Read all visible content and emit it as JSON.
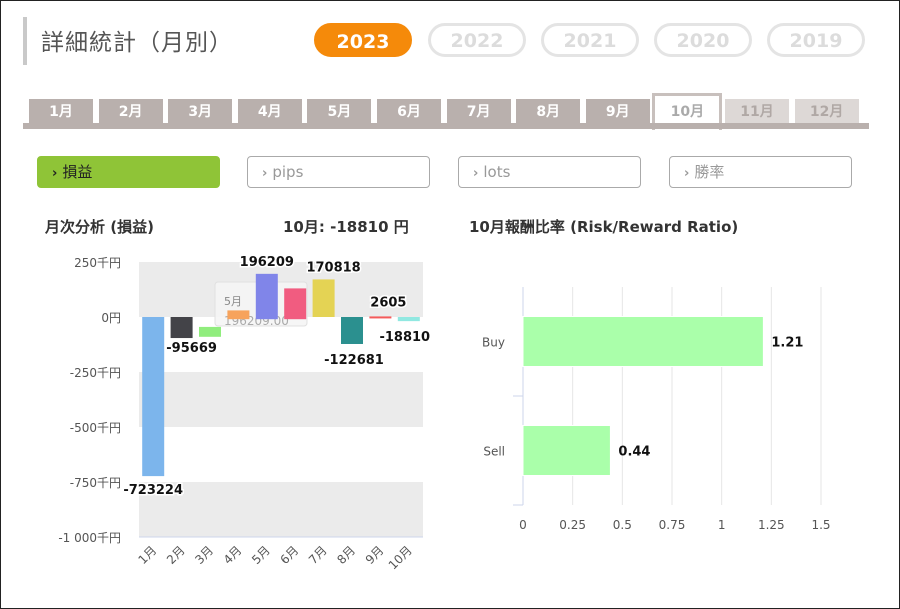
{
  "header": {
    "title": "詳細統計（月別）"
  },
  "years": [
    {
      "label": "2023",
      "active": true
    },
    {
      "label": "2022",
      "active": false
    },
    {
      "label": "2021",
      "active": false
    },
    {
      "label": "2020",
      "active": false
    },
    {
      "label": "2019",
      "active": false
    }
  ],
  "months": [
    {
      "label": "1月",
      "state": "normal"
    },
    {
      "label": "2月",
      "state": "normal"
    },
    {
      "label": "3月",
      "state": "normal"
    },
    {
      "label": "4月",
      "state": "normal"
    },
    {
      "label": "5月",
      "state": "normal"
    },
    {
      "label": "6月",
      "state": "normal"
    },
    {
      "label": "7月",
      "state": "normal"
    },
    {
      "label": "8月",
      "state": "normal"
    },
    {
      "label": "9月",
      "state": "normal"
    },
    {
      "label": "10月",
      "state": "active"
    },
    {
      "label": "11月",
      "state": "future"
    },
    {
      "label": "12月",
      "state": "future"
    }
  ],
  "metrics": [
    {
      "label": "損益",
      "active": true,
      "icon": "chevron-right-icon"
    },
    {
      "label": "pips",
      "active": false,
      "icon": "chevron-right-icon"
    },
    {
      "label": "lots",
      "active": false,
      "icon": "chevron-right-icon"
    },
    {
      "label": "勝率",
      "active": false,
      "icon": "chevron-right-icon"
    }
  ],
  "left_panel": {
    "title": "月次分析 (損益)",
    "summary": "10月:  -18810 円"
  },
  "right_panel": {
    "title": "10月報酬比率 (Risk/Reward Ratio)"
  },
  "tooltip": {
    "line1": "5月",
    "line2": "196209.00"
  },
  "colors": {
    "accent_orange": "#f58a0a",
    "accent_green": "#8fc437",
    "tab_gray": "#b9b0ad",
    "rr_bar": "#aaffaa"
  },
  "chart_data": [
    {
      "type": "bar",
      "subtype": "waterfall",
      "categories": [
        "1月",
        "2月",
        "3月",
        "4月",
        "5月",
        "6月",
        "7月",
        "8月",
        "9月",
        "10月"
      ],
      "values": [
        -723224,
        -95669,
        null,
        null,
        196209,
        null,
        170818,
        -122681,
        2605,
        -18810
      ],
      "data_labels": [
        "-723224",
        "-95669",
        "",
        "",
        "196209",
        "",
        "170818",
        "-122681",
        "2605",
        "-18810"
      ],
      "bar_colors": [
        "#7cb5ec",
        "#434348",
        "#90ed7d",
        "#f7a35c",
        "#8085e9",
        "#f15c80",
        "#e4d354",
        "#2b908f",
        "#f45b5b",
        "#91e8e1"
      ],
      "bars": [
        {
          "from": 0,
          "to": -723224
        },
        {
          "from": 0,
          "to": -95669
        },
        {
          "from": -45000,
          "to": -90000
        },
        {
          "from": -10000,
          "to": 30000
        },
        {
          "from": -10000,
          "to": 196209
        },
        {
          "from": -10000,
          "to": 130000
        },
        {
          "from": 0,
          "to": 170818
        },
        {
          "from": 0,
          "to": -122681
        },
        {
          "from": 0,
          "to": 2605
        },
        {
          "from": 0,
          "to": -18810
        }
      ],
      "y_ticks": [
        "250千円",
        "0円",
        "-250千円",
        "-500千円",
        "-750千円",
        "-1 000千円"
      ],
      "ylim": [
        -1000000,
        250000
      ],
      "grid": "alternating-bands"
    },
    {
      "type": "bar",
      "orientation": "horizontal",
      "categories": [
        "Buy",
        "Sell"
      ],
      "values": [
        1.21,
        0.44
      ],
      "data_labels": [
        "1.21",
        "0.44"
      ],
      "x_ticks": [
        "0",
        "0.25",
        "0.5",
        "0.75",
        "1",
        "1.25",
        "1.5"
      ],
      "xlim": [
        0,
        1.5
      ],
      "grid": "vertical"
    }
  ]
}
